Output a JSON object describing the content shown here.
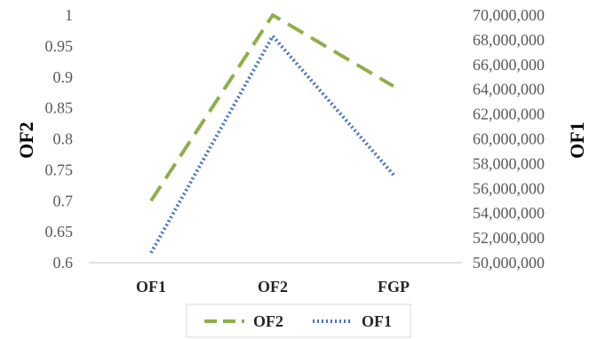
{
  "chart_data": {
    "type": "line",
    "categories": [
      "OF1",
      "OF2",
      "FGP"
    ],
    "y_left": {
      "label": "OF2",
      "ylim": [
        0.6,
        1
      ],
      "ticks": [
        "0.6",
        "0.65",
        "0.7",
        "0.75",
        "0.8",
        "0.85",
        "0.9",
        "0.95",
        "1"
      ]
    },
    "y_right": {
      "label": "OF1",
      "ylim": [
        50000000,
        70000000
      ],
      "ticks": [
        "50,000,000",
        "52,000,000",
        "54,000,000",
        "56,000,000",
        "58,000,000",
        "60,000,000",
        "62,000,000",
        "64,000,000",
        "66,000,000",
        "68,000,000",
        "70,000,000"
      ]
    },
    "series": [
      {
        "name": "OF2",
        "axis": "left",
        "values": [
          0.7,
          1.0,
          0.885
        ],
        "color": "#8db04a",
        "style": "dashed"
      },
      {
        "name": "OF1",
        "axis": "right",
        "values": [
          50800000,
          68300000,
          57100000
        ],
        "color": "#4472c4",
        "style": "dotted"
      }
    ],
    "legend": {
      "position": "bottom",
      "items": [
        "OF2",
        "OF1"
      ]
    },
    "grid": false
  }
}
